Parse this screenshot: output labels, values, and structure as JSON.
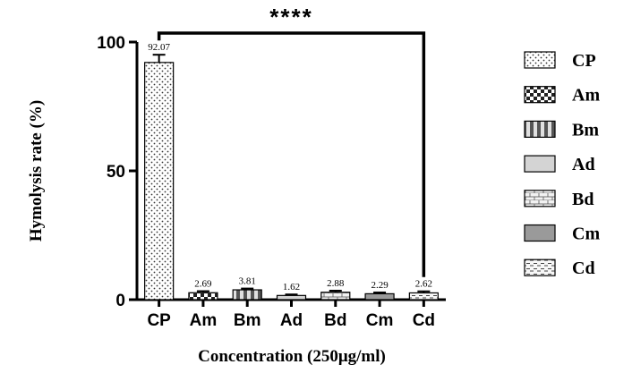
{
  "chart_data": {
    "type": "bar",
    "categories": [
      "CP",
      "Am",
      "Bm",
      "Ad",
      "Bd",
      "Cm",
      "Cd"
    ],
    "values": [
      92.07,
      2.69,
      3.81,
      1.62,
      2.88,
      2.29,
      2.62
    ],
    "data_labels": [
      "92.07",
      "2.69",
      "3.81",
      "1.62",
      "2.88",
      "2.29",
      "2.62"
    ],
    "error": [
      3.0,
      0.6,
      0.5,
      0.4,
      0.6,
      0.5,
      0.6
    ],
    "ylabel": "Hymolysis rate (%)",
    "xlabel": "Concentration (250μg/ml)",
    "ylim": [
      0,
      100
    ],
    "yticks": [
      0,
      50,
      100
    ],
    "significance": {
      "label": "****",
      "from": "CP",
      "to": "Cd"
    },
    "legend": {
      "position": "right",
      "entries": [
        {
          "label": "CP",
          "pattern": "dots"
        },
        {
          "label": "Am",
          "pattern": "checker"
        },
        {
          "label": "Bm",
          "pattern": "vstripes"
        },
        {
          "label": "Ad",
          "pattern": "light-solid"
        },
        {
          "label": "Bd",
          "pattern": "bricks"
        },
        {
          "label": "Cm",
          "pattern": "gray-solid"
        },
        {
          "label": "Cd",
          "pattern": "dashes"
        }
      ]
    },
    "grid": false
  }
}
